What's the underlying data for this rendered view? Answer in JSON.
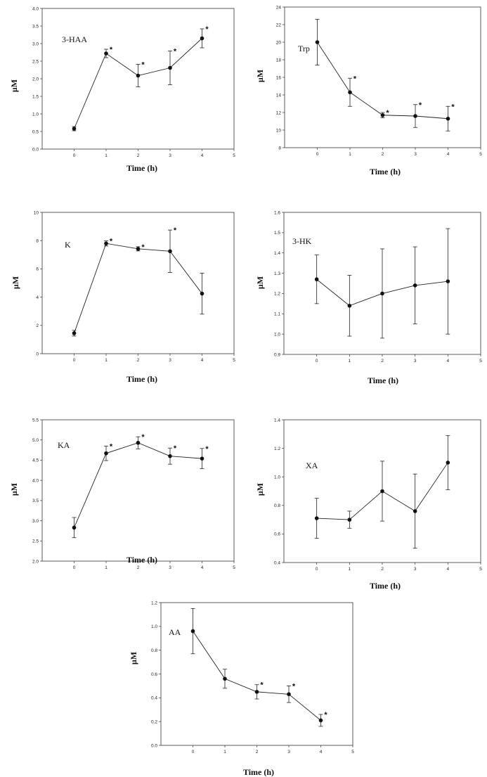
{
  "chart_data": [
    {
      "type": "line",
      "panel_label": "3-HAA",
      "xlabel": "Time (h)",
      "ylabel": "µM",
      "xlim": [
        -1,
        5
      ],
      "ylim": [
        0,
        4
      ],
      "xticks": [
        "0",
        "1",
        "2",
        "3",
        "4",
        "5"
      ],
      "yticks": [
        "0.0",
        "0.5",
        "1.0",
        "1.5",
        "2.0",
        "2.5",
        "3.0",
        "3.5",
        "4.0"
      ],
      "series": [
        {
          "x": [
            0,
            1,
            2,
            3,
            4
          ],
          "y": [
            0.58,
            2.72,
            2.09,
            2.31,
            3.15
          ],
          "err": [
            0.06,
            0.12,
            0.32,
            0.48,
            0.27
          ],
          "significant": [
            false,
            true,
            true,
            true,
            true
          ]
        }
      ],
      "significance_marker": "*"
    },
    {
      "type": "line",
      "panel_label": "Trp",
      "xlabel": "Time (h)",
      "ylabel": "µM",
      "xlim": [
        -1,
        5
      ],
      "ylim": [
        8,
        24
      ],
      "xticks": [
        "0",
        "1",
        "2",
        "3",
        "4",
        "5"
      ],
      "yticks": [
        "8",
        "10",
        "12",
        "14",
        "16",
        "18",
        "20",
        "22",
        "24"
      ],
      "series": [
        {
          "x": [
            0,
            1,
            2,
            3,
            4
          ],
          "y": [
            20.0,
            14.3,
            11.7,
            11.6,
            11.3
          ],
          "err": [
            2.6,
            1.6,
            0.3,
            1.3,
            1.4
          ],
          "significant": [
            false,
            true,
            true,
            true,
            true
          ]
        }
      ],
      "significance_marker": "*"
    },
    {
      "type": "line",
      "panel_label": "K",
      "xlabel": "Time (h)",
      "ylabel": "µM",
      "xlim": [
        -1,
        5
      ],
      "ylim": [
        0,
        10
      ],
      "xticks": [
        "0",
        "1",
        "2",
        "3",
        "4",
        "5"
      ],
      "yticks": [
        "0",
        "2",
        "4",
        "6",
        "8",
        "10"
      ],
      "series": [
        {
          "x": [
            0,
            1,
            2,
            3,
            4
          ],
          "y": [
            1.45,
            7.8,
            7.42,
            7.25,
            4.25
          ],
          "err": [
            0.2,
            0.18,
            0.15,
            1.5,
            1.45
          ],
          "significant": [
            false,
            true,
            true,
            true,
            false
          ]
        }
      ],
      "significance_marker": "*"
    },
    {
      "type": "line",
      "panel_label": "3-HK",
      "xlabel": "Time (h)",
      "ylabel": "µM",
      "xlim": [
        -1,
        5
      ],
      "ylim": [
        0.9,
        1.6
      ],
      "xticks": [
        "0",
        "1",
        "2",
        "3",
        "4",
        "5"
      ],
      "yticks": [
        "0.9",
        "1.0",
        "1.1",
        "1.2",
        "1.3",
        "1.4",
        "1.5",
        "1.6"
      ],
      "series": [
        {
          "x": [
            0,
            1,
            2,
            3,
            4
          ],
          "y": [
            1.27,
            1.14,
            1.2,
            1.24,
            1.26
          ],
          "err": [
            0.12,
            0.15,
            0.22,
            0.19,
            0.26
          ],
          "significant": [
            false,
            false,
            false,
            false,
            false
          ]
        }
      ],
      "significance_marker": "*"
    },
    {
      "type": "line",
      "panel_label": "KA",
      "xlabel": "Time (h)",
      "ylabel": "µM",
      "xlim": [
        -1,
        5
      ],
      "ylim": [
        2.0,
        5.5
      ],
      "xticks": [
        "0",
        "1",
        "2",
        "3",
        "4",
        "5"
      ],
      "yticks": [
        "2.0",
        "2.5",
        "3.0",
        "3.5",
        "4.0",
        "4.5",
        "5.0",
        "5.5"
      ],
      "series": [
        {
          "x": [
            0,
            1,
            2,
            3,
            4
          ],
          "y": [
            2.83,
            4.67,
            4.93,
            4.6,
            4.54
          ],
          "err": [
            0.25,
            0.18,
            0.15,
            0.2,
            0.25
          ],
          "significant": [
            false,
            true,
            true,
            true,
            true
          ]
        }
      ],
      "significance_marker": "*"
    },
    {
      "type": "line",
      "panel_label": "XA",
      "xlabel": "Time (h)",
      "ylabel": "µM",
      "xlim": [
        -1,
        5
      ],
      "ylim": [
        0.4,
        1.4
      ],
      "xticks": [
        "0",
        "1",
        "2",
        "3",
        "4",
        "5"
      ],
      "yticks": [
        "0.4",
        "0.6",
        "0.8",
        "1.0",
        "1.2",
        "1.4"
      ],
      "series": [
        {
          "x": [
            0,
            1,
            2,
            3,
            4
          ],
          "y": [
            0.71,
            0.7,
            0.9,
            0.76,
            1.1
          ],
          "err": [
            0.14,
            0.06,
            0.21,
            0.26,
            0.19
          ],
          "significant": [
            false,
            false,
            false,
            false,
            false
          ]
        }
      ],
      "significance_marker": "*"
    },
    {
      "type": "line",
      "panel_label": "AA",
      "xlabel": "Time (h)",
      "ylabel": "µM",
      "xlim": [
        -1,
        5
      ],
      "ylim": [
        0,
        1.2
      ],
      "xticks": [
        "0",
        "1",
        "2",
        "3",
        "4",
        "5"
      ],
      "yticks": [
        "0.0",
        "0.2",
        "0.4",
        "0.6",
        "0.8",
        "1.0",
        "1.2"
      ],
      "series": [
        {
          "x": [
            0,
            1,
            2,
            3,
            4
          ],
          "y": [
            0.96,
            0.56,
            0.45,
            0.43,
            0.21
          ],
          "err": [
            0.19,
            0.08,
            0.06,
            0.07,
            0.05
          ],
          "significant": [
            false,
            false,
            true,
            true,
            true
          ]
        }
      ],
      "significance_marker": "*"
    }
  ]
}
